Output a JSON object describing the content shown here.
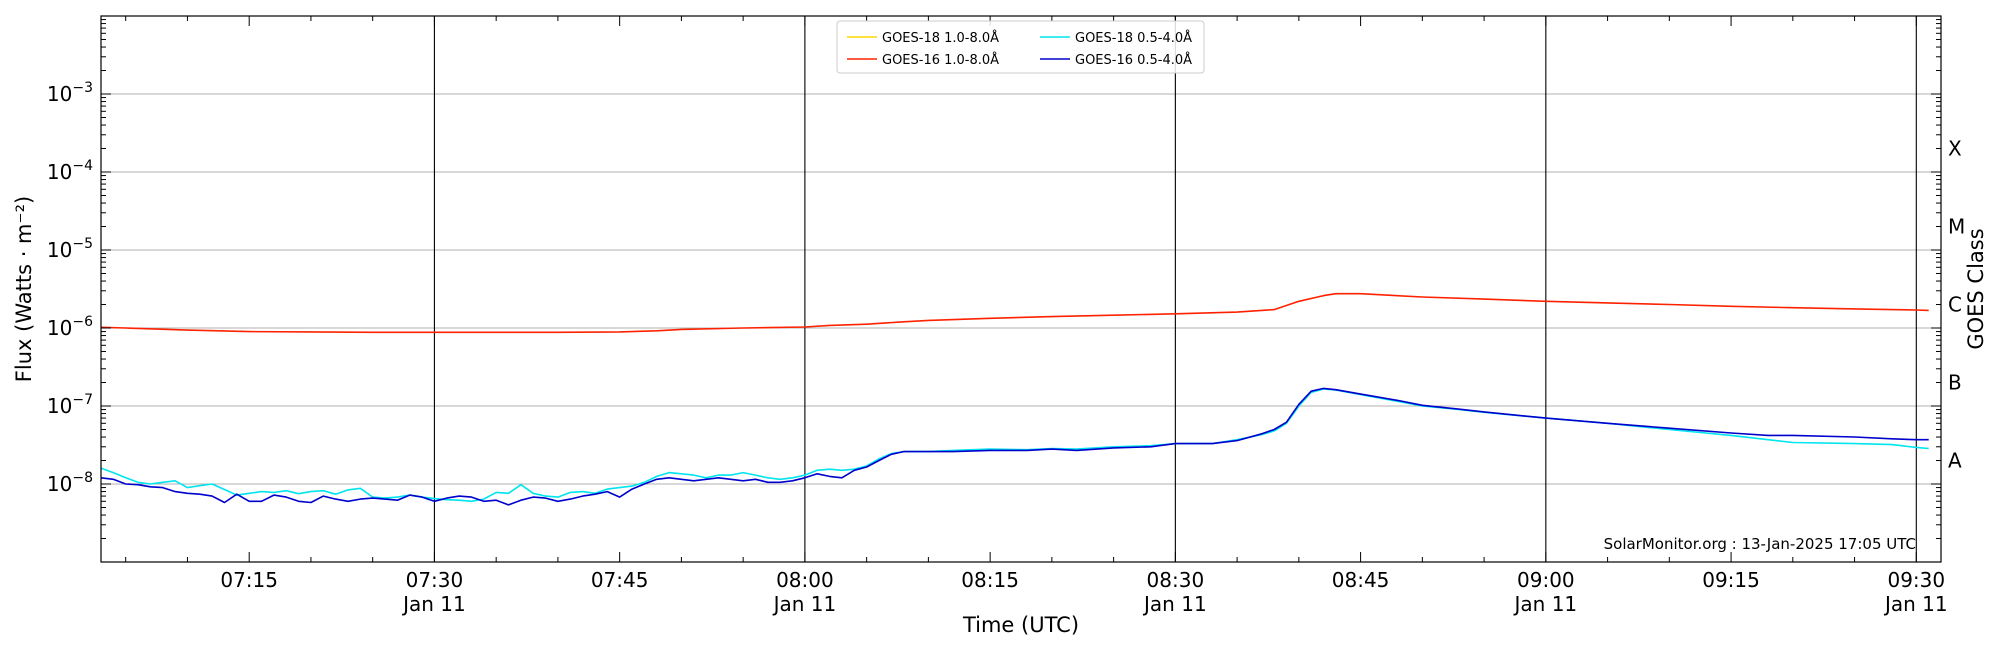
{
  "chart_data": {
    "type": "line",
    "title": "",
    "xlabel": "Time (UTC)",
    "ylabel": "Flux (Watts · m⁻²)",
    "y2label": "GOES Class",
    "yscale": "log",
    "ylim": [
      1e-09,
      0.01
    ],
    "xlim": [
      "07:03",
      "09:32"
    ],
    "grid": "horizontal",
    "legend_position": "top-center",
    "y_ticks": [
      {
        "value": 0.001,
        "base": "10",
        "exp": "−3"
      },
      {
        "value": 0.0001,
        "base": "10",
        "exp": "−4"
      },
      {
        "value": 1e-05,
        "base": "10",
        "exp": "−5"
      },
      {
        "value": 1e-06,
        "base": "10",
        "exp": "−6"
      },
      {
        "value": 1e-07,
        "base": "10",
        "exp": "−7"
      },
      {
        "value": 1e-08,
        "base": "10",
        "exp": "−8"
      }
    ],
    "x_ticks": [
      {
        "time": "07:15",
        "label": "07:15",
        "sublabel": ""
      },
      {
        "time": "07:30",
        "label": "07:30",
        "sublabel": "Jan 11"
      },
      {
        "time": "07:45",
        "label": "07:45",
        "sublabel": ""
      },
      {
        "time": "08:00",
        "label": "08:00",
        "sublabel": "Jan 11"
      },
      {
        "time": "08:15",
        "label": "08:15",
        "sublabel": ""
      },
      {
        "time": "08:30",
        "label": "08:30",
        "sublabel": "Jan 11"
      },
      {
        "time": "08:45",
        "label": "08:45",
        "sublabel": ""
      },
      {
        "time": "09:00",
        "label": "09:00",
        "sublabel": "Jan 11"
      },
      {
        "time": "09:15",
        "label": "09:15",
        "sublabel": ""
      },
      {
        "time": "09:30",
        "label": "09:30",
        "sublabel": "Jan 11"
      }
    ],
    "vertical_lines": [
      "07:30",
      "08:00",
      "08:30",
      "09:00",
      "09:30"
    ],
    "goes_classes": [
      {
        "label": "X",
        "value": 0.0002
      },
      {
        "label": "M",
        "value": 2e-05
      },
      {
        "label": "C",
        "value": 2e-06
      },
      {
        "label": "B",
        "value": 2e-07
      },
      {
        "label": "A",
        "value": 2e-08
      }
    ],
    "credit": "SolarMonitor.org : 13-Jan-2025 17:05 UTC",
    "series": [
      {
        "name": "GOES-18 1.0-8.0Å",
        "color": "#ffd700",
        "visible": false,
        "points": []
      },
      {
        "name": "GOES-16 1.0-8.0Å",
        "color": "#ff2200",
        "points": [
          [
            "07:03",
            1.02e-06
          ],
          [
            "07:05",
            1e-06
          ],
          [
            "07:10",
            9.4e-07
          ],
          [
            "07:15",
            9e-07
          ],
          [
            "07:20",
            8.9e-07
          ],
          [
            "07:25",
            8.8e-07
          ],
          [
            "07:30",
            8.8e-07
          ],
          [
            "07:35",
            8.8e-07
          ],
          [
            "07:40",
            8.8e-07
          ],
          [
            "07:45",
            8.9e-07
          ],
          [
            "07:48",
            9.2e-07
          ],
          [
            "07:50",
            9.6e-07
          ],
          [
            "07:55",
            1e-06
          ],
          [
            "08:00",
            1.03e-06
          ],
          [
            "08:02",
            1.08e-06
          ],
          [
            "08:05",
            1.12e-06
          ],
          [
            "08:08",
            1.2e-06
          ],
          [
            "08:10",
            1.25e-06
          ],
          [
            "08:15",
            1.33e-06
          ],
          [
            "08:20",
            1.4e-06
          ],
          [
            "08:25",
            1.46e-06
          ],
          [
            "08:30",
            1.52e-06
          ],
          [
            "08:35",
            1.6e-06
          ],
          [
            "08:38",
            1.72e-06
          ],
          [
            "08:40",
            2.2e-06
          ],
          [
            "08:42",
            2.6e-06
          ],
          [
            "08:43",
            2.75e-06
          ],
          [
            "08:45",
            2.75e-06
          ],
          [
            "08:50",
            2.5e-06
          ],
          [
            "08:55",
            2.35e-06
          ],
          [
            "09:00",
            2.2e-06
          ],
          [
            "09:05",
            2.1e-06
          ],
          [
            "09:10",
            2e-06
          ],
          [
            "09:15",
            1.9e-06
          ],
          [
            "09:20",
            1.82e-06
          ],
          [
            "09:25",
            1.76e-06
          ],
          [
            "09:30",
            1.7e-06
          ],
          [
            "09:31",
            1.68e-06
          ]
        ]
      },
      {
        "name": "GOES-18 0.5-4.0Å",
        "color": "#00e5ee",
        "points": [
          [
            "07:03",
            1.6e-08
          ],
          [
            "07:04",
            1.4e-08
          ],
          [
            "07:05",
            1.2e-08
          ],
          [
            "07:06",
            1.05e-08
          ],
          [
            "07:07",
            1e-08
          ],
          [
            "07:08",
            1.05e-08
          ],
          [
            "07:09",
            1.1e-08
          ],
          [
            "07:10",
            9e-09
          ],
          [
            "07:11",
            9.5e-09
          ],
          [
            "07:12",
            1e-08
          ],
          [
            "07:13",
            8.5e-09
          ],
          [
            "07:14",
            7.2e-09
          ],
          [
            "07:15",
            7.6e-09
          ],
          [
            "07:16",
            8e-09
          ],
          [
            "07:17",
            7.8e-09
          ],
          [
            "07:18",
            8.2e-09
          ],
          [
            "07:19",
            7.5e-09
          ],
          [
            "07:20",
            8e-09
          ],
          [
            "07:21",
            8.2e-09
          ],
          [
            "07:22",
            7.4e-09
          ],
          [
            "07:23",
            8.4e-09
          ],
          [
            "07:24",
            8.8e-09
          ],
          [
            "07:25",
            6.8e-09
          ],
          [
            "07:26",
            6.6e-09
          ],
          [
            "07:27",
            6.8e-09
          ],
          [
            "07:28",
            7.2e-09
          ],
          [
            "07:29",
            6.8e-09
          ],
          [
            "07:30",
            6.5e-09
          ],
          [
            "07:31",
            6.3e-09
          ],
          [
            "07:32",
            6.2e-09
          ],
          [
            "07:33",
            6e-09
          ],
          [
            "07:34",
            6.4e-09
          ],
          [
            "07:35",
            7.8e-09
          ],
          [
            "07:36",
            7.6e-09
          ],
          [
            "07:37",
            9.8e-09
          ],
          [
            "07:38",
            7.6e-09
          ],
          [
            "07:39",
            7e-09
          ],
          [
            "07:40",
            6.8e-09
          ],
          [
            "07:41",
            7.8e-09
          ],
          [
            "07:42",
            8e-09
          ],
          [
            "07:43",
            7.6e-09
          ],
          [
            "07:44",
            8.6e-09
          ],
          [
            "07:45",
            9e-09
          ],
          [
            "07:46",
            9.4e-09
          ],
          [
            "07:47",
            1.05e-08
          ],
          [
            "07:48",
            1.25e-08
          ],
          [
            "07:49",
            1.4e-08
          ],
          [
            "07:50",
            1.35e-08
          ],
          [
            "07:51",
            1.3e-08
          ],
          [
            "07:52",
            1.2e-08
          ],
          [
            "07:53",
            1.3e-08
          ],
          [
            "07:54",
            1.3e-08
          ],
          [
            "07:55",
            1.4e-08
          ],
          [
            "07:56",
            1.3e-08
          ],
          [
            "07:57",
            1.2e-08
          ],
          [
            "07:58",
            1.15e-08
          ],
          [
            "07:59",
            1.2e-08
          ],
          [
            "08:00",
            1.3e-08
          ],
          [
            "08:01",
            1.5e-08
          ],
          [
            "08:02",
            1.55e-08
          ],
          [
            "08:03",
            1.5e-08
          ],
          [
            "08:04",
            1.55e-08
          ],
          [
            "08:05",
            1.7e-08
          ],
          [
            "08:06",
            2.1e-08
          ],
          [
            "08:07",
            2.45e-08
          ],
          [
            "08:08",
            2.6e-08
          ],
          [
            "08:10",
            2.6e-08
          ],
          [
            "08:12",
            2.7e-08
          ],
          [
            "08:15",
            2.8e-08
          ],
          [
            "08:18",
            2.75e-08
          ],
          [
            "08:20",
            2.85e-08
          ],
          [
            "08:22",
            2.8e-08
          ],
          [
            "08:25",
            3e-08
          ],
          [
            "08:28",
            3.1e-08
          ],
          [
            "08:30",
            3.3e-08
          ],
          [
            "08:33",
            3.3e-08
          ],
          [
            "08:35",
            3.7e-08
          ],
          [
            "08:37",
            4.3e-08
          ],
          [
            "08:38",
            4.8e-08
          ],
          [
            "08:39",
            6e-08
          ],
          [
            "08:40",
            1e-07
          ],
          [
            "08:41",
            1.5e-07
          ],
          [
            "08:42",
            1.65e-07
          ],
          [
            "08:43",
            1.6e-07
          ],
          [
            "08:45",
            1.4e-07
          ],
          [
            "08:48",
            1.15e-07
          ],
          [
            "08:50",
            1e-07
          ],
          [
            "08:53",
            9e-08
          ],
          [
            "08:55",
            8.3e-08
          ],
          [
            "09:00",
            7e-08
          ],
          [
            "09:05",
            6e-08
          ],
          [
            "09:10",
            5e-08
          ],
          [
            "09:15",
            4.2e-08
          ],
          [
            "09:18",
            3.7e-08
          ],
          [
            "09:20",
            3.4e-08
          ],
          [
            "09:25",
            3.3e-08
          ],
          [
            "09:28",
            3.2e-08
          ],
          [
            "09:30",
            2.95e-08
          ],
          [
            "09:31",
            2.85e-08
          ]
        ]
      },
      {
        "name": "GOES-16 0.5-4.0Å",
        "color": "#0000cd",
        "points": [
          [
            "07:03",
            1.2e-08
          ],
          [
            "07:04",
            1.15e-08
          ],
          [
            "07:05",
            1e-08
          ],
          [
            "07:06",
            9.8e-09
          ],
          [
            "07:07",
            9.2e-09
          ],
          [
            "07:08",
            9e-09
          ],
          [
            "07:09",
            8e-09
          ],
          [
            "07:10",
            7.6e-09
          ],
          [
            "07:11",
            7.4e-09
          ],
          [
            "07:12",
            7e-09
          ],
          [
            "07:13",
            5.8e-09
          ],
          [
            "07:14",
            7.4e-09
          ],
          [
            "07:15",
            6e-09
          ],
          [
            "07:16",
            6e-09
          ],
          [
            "07:17",
            7.2e-09
          ],
          [
            "07:18",
            6.8e-09
          ],
          [
            "07:19",
            6e-09
          ],
          [
            "07:20",
            5.8e-09
          ],
          [
            "07:21",
            7e-09
          ],
          [
            "07:22",
            6.4e-09
          ],
          [
            "07:23",
            6e-09
          ],
          [
            "07:24",
            6.4e-09
          ],
          [
            "07:25",
            6.6e-09
          ],
          [
            "07:26",
            6.4e-09
          ],
          [
            "07:27",
            6.2e-09
          ],
          [
            "07:28",
            7.2e-09
          ],
          [
            "07:29",
            6.8e-09
          ],
          [
            "07:30",
            6e-09
          ],
          [
            "07:31",
            6.6e-09
          ],
          [
            "07:32",
            7e-09
          ],
          [
            "07:33",
            6.8e-09
          ],
          [
            "07:34",
            6e-09
          ],
          [
            "07:35",
            6.2e-09
          ],
          [
            "07:36",
            5.4e-09
          ],
          [
            "07:37",
            6.2e-09
          ],
          [
            "07:38",
            6.8e-09
          ],
          [
            "07:39",
            6.6e-09
          ],
          [
            "07:40",
            6e-09
          ],
          [
            "07:41",
            6.4e-09
          ],
          [
            "07:42",
            7e-09
          ],
          [
            "07:43",
            7.4e-09
          ],
          [
            "07:44",
            8e-09
          ],
          [
            "07:45",
            6.8e-09
          ],
          [
            "07:46",
            8.6e-09
          ],
          [
            "07:47",
            1e-08
          ],
          [
            "07:48",
            1.15e-08
          ],
          [
            "07:49",
            1.2e-08
          ],
          [
            "07:50",
            1.15e-08
          ],
          [
            "07:51",
            1.1e-08
          ],
          [
            "07:52",
            1.15e-08
          ],
          [
            "07:53",
            1.2e-08
          ],
          [
            "07:54",
            1.15e-08
          ],
          [
            "07:55",
            1.1e-08
          ],
          [
            "07:56",
            1.15e-08
          ],
          [
            "07:57",
            1.05e-08
          ],
          [
            "07:58",
            1.05e-08
          ],
          [
            "07:59",
            1.1e-08
          ],
          [
            "08:00",
            1.2e-08
          ],
          [
            "08:01",
            1.35e-08
          ],
          [
            "08:02",
            1.25e-08
          ],
          [
            "08:03",
            1.2e-08
          ],
          [
            "08:04",
            1.5e-08
          ],
          [
            "08:05",
            1.65e-08
          ],
          [
            "08:06",
            2e-08
          ],
          [
            "08:07",
            2.4e-08
          ],
          [
            "08:08",
            2.6e-08
          ],
          [
            "08:10",
            2.6e-08
          ],
          [
            "08:12",
            2.6e-08
          ],
          [
            "08:15",
            2.7e-08
          ],
          [
            "08:18",
            2.7e-08
          ],
          [
            "08:20",
            2.8e-08
          ],
          [
            "08:22",
            2.7e-08
          ],
          [
            "08:25",
            2.9e-08
          ],
          [
            "08:28",
            3e-08
          ],
          [
            "08:30",
            3.3e-08
          ],
          [
            "08:33",
            3.3e-08
          ],
          [
            "08:35",
            3.6e-08
          ],
          [
            "08:37",
            4.4e-08
          ],
          [
            "08:38",
            5e-08
          ],
          [
            "08:39",
            6.2e-08
          ],
          [
            "08:40",
            1.05e-07
          ],
          [
            "08:41",
            1.55e-07
          ],
          [
            "08:42",
            1.68e-07
          ],
          [
            "08:43",
            1.62e-07
          ],
          [
            "08:45",
            1.42e-07
          ],
          [
            "08:48",
            1.18e-07
          ],
          [
            "08:50",
            1.02e-07
          ],
          [
            "08:53",
            9.1e-08
          ],
          [
            "08:55",
            8.4e-08
          ],
          [
            "09:00",
            7e-08
          ],
          [
            "09:05",
            6e-08
          ],
          [
            "09:10",
            5.2e-08
          ],
          [
            "09:15",
            4.5e-08
          ],
          [
            "09:18",
            4.2e-08
          ],
          [
            "09:20",
            4.2e-08
          ],
          [
            "09:25",
            4e-08
          ],
          [
            "09:28",
            3.8e-08
          ],
          [
            "09:30",
            3.7e-08
          ],
          [
            "09:31",
            3.7e-08
          ]
        ]
      }
    ]
  }
}
